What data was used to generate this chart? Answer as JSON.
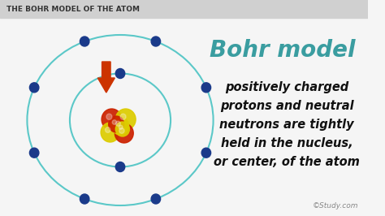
{
  "bg_color": "#f5f5f5",
  "header_bg": "#d0d0d0",
  "header_text": "THE BOHR MODEL OF THE ATOM",
  "header_text_color": "#333333",
  "title": "Bohr model",
  "title_color": "#3a9da0",
  "body_lines": [
    "positively charged",
    "protons and neutral",
    "neutrons are tightly",
    "held in the nucleus,",
    "or center, of the atom"
  ],
  "body_text_color": "#111111",
  "orbit_color": "#5bc8c8",
  "electron_color": "#1a3a8a",
  "nucleus_red": "#cc2200",
  "nucleus_yellow": "#ddcc00",
  "arrow_color": "#cc3300",
  "watermark": "©Study.com",
  "watermark_color": "#888888"
}
